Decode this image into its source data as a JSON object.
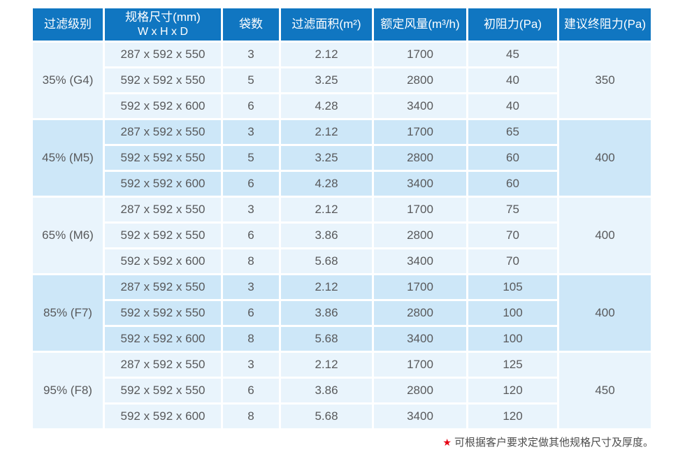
{
  "colors": {
    "header_bg": "#1076c1",
    "header_text": "#ffffff",
    "band_light": "#e9f4fc",
    "band_dark": "#cde7f8",
    "body_text": "#58595b",
    "grid_gap": "#ffffff",
    "star_red": "#e60012"
  },
  "table": {
    "headers": [
      {
        "key": "grade",
        "label": "过滤级别"
      },
      {
        "key": "dimensions",
        "label": "规格尺寸(mm)",
        "sublabel": "W x H x D"
      },
      {
        "key": "bags",
        "label": "袋数"
      },
      {
        "key": "area",
        "label": "过滤面积(m²)"
      },
      {
        "key": "airflow",
        "label": "额定风量(m³/h)"
      },
      {
        "key": "initial",
        "label": "初阻力(Pa)"
      },
      {
        "key": "final",
        "label": "建议终阻力(Pa)"
      }
    ],
    "groups": [
      {
        "grade": "35% (G4)",
        "final_resistance": "350",
        "rows": [
          {
            "dimensions": "287 x 592 x 550",
            "bags": "3",
            "area": "2.12",
            "airflow": "1700",
            "initial": "45"
          },
          {
            "dimensions": "592 x 592 x 550",
            "bags": "5",
            "area": "3.25",
            "airflow": "2800",
            "initial": "40"
          },
          {
            "dimensions": "592 x 592 x 600",
            "bags": "6",
            "area": "4.28",
            "airflow": "3400",
            "initial": "40"
          }
        ]
      },
      {
        "grade": "45% (M5)",
        "final_resistance": "400",
        "rows": [
          {
            "dimensions": "287 x 592 x 550",
            "bags": "3",
            "area": "2.12",
            "airflow": "1700",
            "initial": "65"
          },
          {
            "dimensions": "592 x 592 x 550",
            "bags": "5",
            "area": "3.25",
            "airflow": "2800",
            "initial": "60"
          },
          {
            "dimensions": "592 x 592 x 600",
            "bags": "6",
            "area": "4.28",
            "airflow": "3400",
            "initial": "60"
          }
        ]
      },
      {
        "grade": "65% (M6)",
        "final_resistance": "400",
        "rows": [
          {
            "dimensions": "287 x 592 x 550",
            "bags": "3",
            "area": "2.12",
            "airflow": "1700",
            "initial": "75"
          },
          {
            "dimensions": "592 x 592 x 550",
            "bags": "6",
            "area": "3.86",
            "airflow": "2800",
            "initial": "70"
          },
          {
            "dimensions": "592 x 592 x 600",
            "bags": "8",
            "area": "5.68",
            "airflow": "3400",
            "initial": "70"
          }
        ]
      },
      {
        "grade": "85% (F7)",
        "final_resistance": "400",
        "rows": [
          {
            "dimensions": "287 x 592 x 550",
            "bags": "3",
            "area": "2.12",
            "airflow": "1700",
            "initial": "105"
          },
          {
            "dimensions": "592 x 592 x 550",
            "bags": "6",
            "area": "3.86",
            "airflow": "2800",
            "initial": "100"
          },
          {
            "dimensions": "592 x 592 x 600",
            "bags": "8",
            "area": "5.68",
            "airflow": "3400",
            "initial": "100"
          }
        ]
      },
      {
        "grade": "95% (F8)",
        "final_resistance": "450",
        "rows": [
          {
            "dimensions": "287 x 592 x 550",
            "bags": "3",
            "area": "2.12",
            "airflow": "1700",
            "initial": "125"
          },
          {
            "dimensions": "592 x 592 x 550",
            "bags": "6",
            "area": "3.86",
            "airflow": "2800",
            "initial": "120"
          },
          {
            "dimensions": "592 x 592 x 600",
            "bags": "8",
            "area": "5.68",
            "airflow": "3400",
            "initial": "120"
          }
        ]
      }
    ]
  },
  "footnote": {
    "star": "★",
    "text": "可根据客户要求定做其他规格尺寸及厚度。"
  }
}
